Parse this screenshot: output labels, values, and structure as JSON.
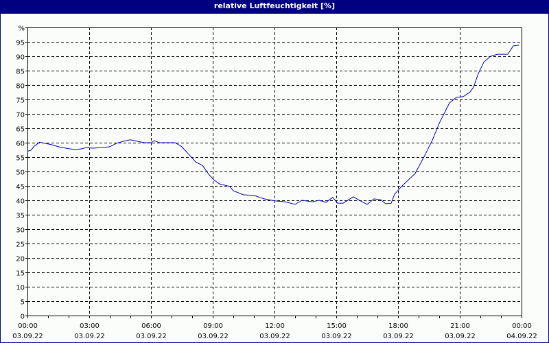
{
  "window": {
    "title": "relative Luftfeuchtigkeit [%]",
    "title_bar_color": "#000080",
    "background_color": "#fbfdfb",
    "line_color": "#0000c0"
  },
  "chart_data": {
    "type": "line",
    "title": "relative Luftfeuchtigkeit [%]",
    "xlabel": "",
    "ylabel": "%",
    "ylim": [
      0,
      100
    ],
    "xlim_hours": [
      0,
      24
    ],
    "grid": true,
    "legend": "none",
    "y_ticks": [
      "0",
      "5",
      "10",
      "15",
      "20",
      "25",
      "30",
      "35",
      "40",
      "45",
      "50",
      "55",
      "60",
      "65",
      "70",
      "75",
      "80",
      "85",
      "90",
      "95",
      "%"
    ],
    "x_ticks": [
      {
        "time": "00:00",
        "date": "03.09.22"
      },
      {
        "time": "03:00",
        "date": "03.09.22"
      },
      {
        "time": "06:00",
        "date": "03.09.22"
      },
      {
        "time": "09:00",
        "date": "03.09.22"
      },
      {
        "time": "12:00",
        "date": "03.09.22"
      },
      {
        "time": "15:00",
        "date": "03.09.22"
      },
      {
        "time": "18:00",
        "date": "03.09.22"
      },
      {
        "time": "21:00",
        "date": "03.09.22"
      },
      {
        "time": "00:00",
        "date": "04.09.22"
      }
    ],
    "series": [
      {
        "name": "relative Luftfeuchtigkeit",
        "x_hours": [
          0.0,
          0.17,
          0.33,
          0.6,
          0.83,
          1.17,
          1.5,
          2.0,
          2.33,
          2.67,
          2.83,
          3.17,
          3.67,
          4.0,
          4.33,
          4.67,
          5.0,
          5.33,
          5.67,
          6.0,
          6.17,
          6.4,
          7.17,
          7.5,
          7.83,
          8.17,
          8.5,
          8.83,
          9.07,
          9.33,
          9.83,
          10.0,
          10.5,
          11.0,
          11.5,
          12.0,
          12.5,
          13.0,
          13.33,
          13.83,
          14.17,
          14.5,
          14.83,
          15.07,
          15.33,
          15.83,
          16.17,
          16.5,
          16.83,
          17.17,
          17.4,
          17.67,
          17.83,
          18.17,
          18.83,
          19.27,
          19.67,
          20.0,
          20.33,
          20.5,
          20.83,
          21.17,
          21.5,
          21.67,
          21.9,
          22.17,
          22.5,
          22.83,
          23.33,
          23.6,
          23.83,
          23.87
        ],
        "values": [
          57.0,
          57.4,
          58.8,
          60.2,
          59.8,
          59.3,
          58.6,
          57.9,
          57.6,
          57.9,
          58.3,
          58.1,
          58.3,
          58.6,
          59.8,
          60.5,
          61.0,
          60.5,
          60.0,
          60.0,
          60.7,
          60.0,
          60.0,
          58.6,
          56.0,
          53.3,
          52.1,
          48.8,
          47.0,
          45.7,
          44.8,
          43.3,
          41.9,
          41.7,
          40.5,
          39.8,
          39.5,
          38.6,
          40.0,
          39.5,
          40.0,
          39.3,
          41.0,
          39.0,
          39.0,
          41.2,
          39.8,
          38.6,
          40.5,
          40.2,
          38.8,
          39.0,
          42.1,
          44.8,
          49.3,
          55.2,
          60.9,
          66.7,
          71.4,
          73.8,
          75.7,
          76.0,
          77.6,
          79.3,
          84.0,
          88.0,
          90.0,
          90.7,
          90.7,
          93.6,
          93.8,
          93.8
        ]
      }
    ]
  }
}
